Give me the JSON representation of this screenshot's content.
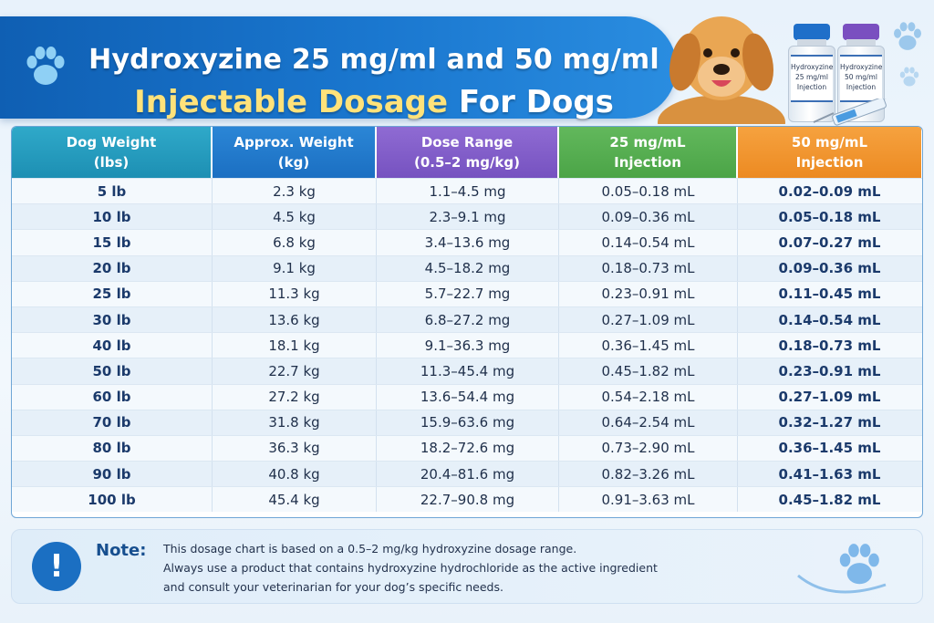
{
  "header": {
    "title_line1": "Hydroxyzine 25 mg/ml and 50 mg/ml",
    "title_line2_highlight": "Injectable Dosage",
    "title_line2_rest": "For Dogs"
  },
  "vials": [
    {
      "line1": "Hydroxyzine",
      "line2": "25 mg/ml",
      "line3": "Injection",
      "cap_color": "#1f6fc9"
    },
    {
      "line1": "Hydroxyzine",
      "line2": "50 mg/ml",
      "line3": "Injection",
      "cap_color": "#7a4fc0"
    }
  ],
  "table": {
    "headers": [
      {
        "line1": "Dog Weight",
        "line2": "(lbs)"
      },
      {
        "line1": "Approx. Weight",
        "line2": "(kg)"
      },
      {
        "line1": "Dose Range",
        "line2": "(0.5–2 mg/kg)"
      },
      {
        "line1": "25 mg/mL",
        "line2": "Injection"
      },
      {
        "line1": "50 mg/mL",
        "line2": "Injection"
      }
    ],
    "rows": [
      [
        "5 lb",
        "2.3 kg",
        "1.1–4.5 mg",
        "0.05–0.18 mL",
        "0.02–0.09 mL"
      ],
      [
        "10 lb",
        "4.5 kg",
        "2.3–9.1 mg",
        "0.09–0.36 mL",
        "0.05–0.18 mL"
      ],
      [
        "15 lb",
        "6.8 kg",
        "3.4–13.6 mg",
        "0.14–0.54 mL",
        "0.07–0.27 mL"
      ],
      [
        "20 lb",
        "9.1 kg",
        "4.5–18.2 mg",
        "0.18–0.73 mL",
        "0.09–0.36 mL"
      ],
      [
        "25 lb",
        "11.3 kg",
        "5.7–22.7 mg",
        "0.23–0.91 mL",
        "0.11–0.45 mL"
      ],
      [
        "30 lb",
        "13.6 kg",
        "6.8–27.2 mg",
        "0.27–1.09 mL",
        "0.14–0.54 mL"
      ],
      [
        "40 lb",
        "18.1 kg",
        "9.1–36.3 mg",
        "0.36–1.45 mL",
        "0.18–0.73 mL"
      ],
      [
        "50 lb",
        "22.7 kg",
        "11.3–45.4 mg",
        "0.45–1.82 mL",
        "0.23–0.91 mL"
      ],
      [
        "60 lb",
        "27.2 kg",
        "13.6–54.4 mg",
        "0.54–2.18 mL",
        "0.27–1.09 mL"
      ],
      [
        "70 lb",
        "31.8 kg",
        "15.9–63.6 mg",
        "0.64–2.54 mL",
        "0.32–1.27 mL"
      ],
      [
        "80 lb",
        "36.3 kg",
        "18.2–72.6 mg",
        "0.73–2.90 mL",
        "0.36–1.45 mL"
      ],
      [
        "90 lb",
        "40.8 kg",
        "20.4–81.6 mg",
        "0.82–3.26 mL",
        "0.41–1.63 mL"
      ],
      [
        "100 lb",
        "45.4 kg",
        "22.7–90.8 mg",
        "0.91–3.63 mL",
        "0.45–1.82 mL"
      ]
    ]
  },
  "note": {
    "icon": "!",
    "label": "Note:",
    "lines": [
      "This dosage chart is based on a 0.5–2 mg/kg hydroxyzine dosage range.",
      "Always use a product that contains hydroxyzine hydrochloride as the active ingredient",
      "and consult your veterinarian for your dog’s specific needs."
    ]
  },
  "colors": {
    "banner": "#1a6fc4",
    "highlight": "#ffe27a",
    "col_weight": "#2fa9c9",
    "col_kg": "#2b86d6",
    "col_dose": "#8f6bd3",
    "col_25": "#62b85c",
    "col_50": "#f6a23f"
  }
}
